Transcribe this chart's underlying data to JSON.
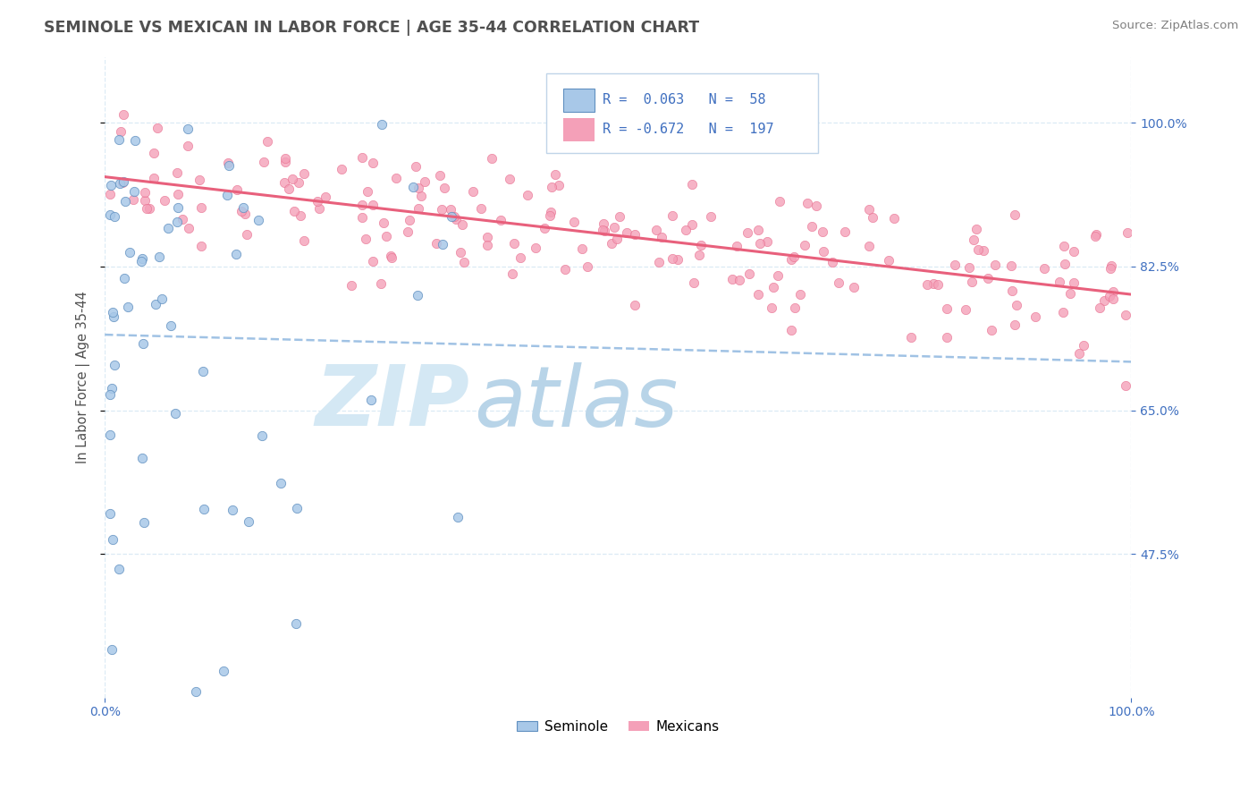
{
  "title": "SEMINOLE VS MEXICAN IN LABOR FORCE | AGE 35-44 CORRELATION CHART",
  "source": "Source: ZipAtlas.com",
  "ylabel": "In Labor Force | Age 35-44",
  "xlim": [
    0.0,
    1.0
  ],
  "ylim": [
    0.3,
    1.08
  ],
  "ytick_positions": [
    0.475,
    0.65,
    0.825,
    1.0
  ],
  "ytick_labels": [
    "47.5%",
    "65.0%",
    "82.5%",
    "100.0%"
  ],
  "xtick_positions": [
    0.0,
    1.0
  ],
  "xtick_labels": [
    "0.0%",
    "100.0%"
  ],
  "seminole_R": 0.063,
  "seminole_N": 58,
  "mexican_R": -0.672,
  "mexican_N": 197,
  "seminole_dot_color": "#a8c8e8",
  "seminole_edge_color": "#6090c0",
  "mexican_dot_color": "#f4a0b8",
  "mexican_edge_color": "#e87090",
  "seminole_trend_color": "#90b8e0",
  "mexican_trend_color": "#e8607c",
  "background_color": "#ffffff",
  "grid_color": "#d8e8f4",
  "title_color": "#505050",
  "axis_label_color": "#505050",
  "tick_color": "#4070c0",
  "source_color": "#808080",
  "watermark_zip_color": "#d4e8f4",
  "watermark_atlas_color": "#b8d4e8",
  "legend_border_color": "#c0d4e8",
  "legend_text_color": "#4070c0"
}
